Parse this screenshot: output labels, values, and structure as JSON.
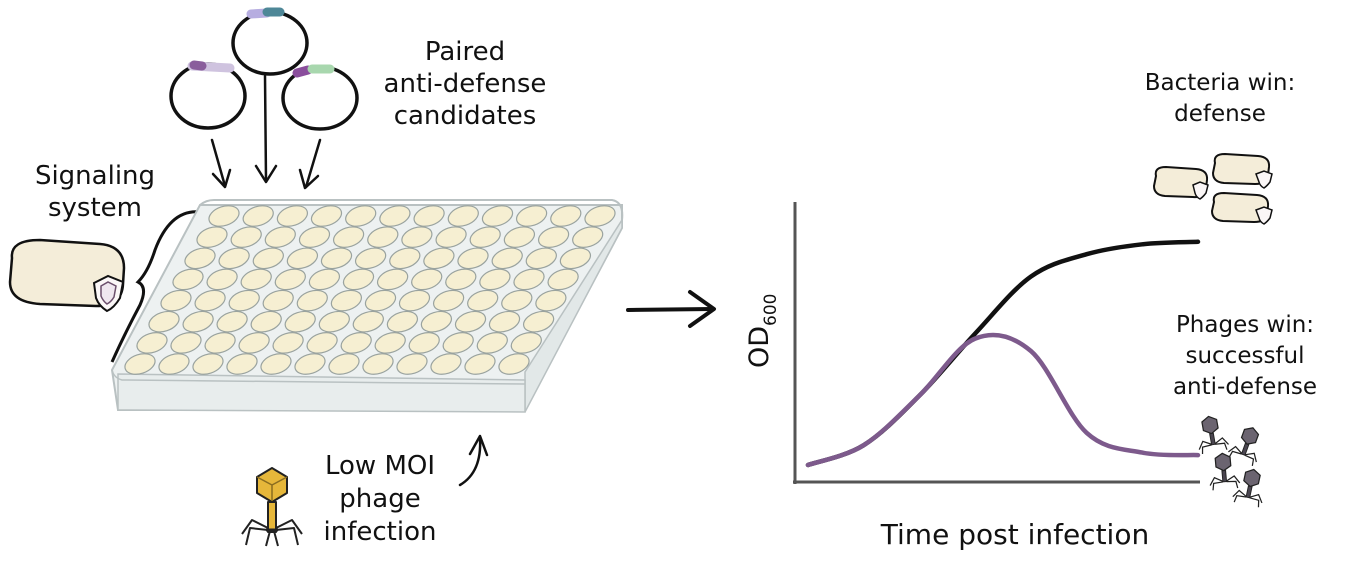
{
  "labels": {
    "paired_line1": "Paired",
    "paired_line2": "anti-defense",
    "paired_line3": "candidates",
    "signaling_line1": "Signaling",
    "signaling_line2": "system",
    "moi_line1": "Low MOI",
    "moi_line2": "phage",
    "moi_line3": "infection",
    "bacteria_win_line1": "Bacteria win:",
    "bacteria_win_line2": "defense",
    "phages_win_line1": "Phages win:",
    "phages_win_line2": "successful",
    "phages_win_line3": "anti-defense"
  },
  "chart_data": {
    "type": "line",
    "xlabel": "Time post infection",
    "ylabel": "OD",
    "ylabel_subscript": "600",
    "series": [
      {
        "color": "#111111",
        "values": [
          0.02,
          0.1,
          0.3,
          0.55,
          0.78,
          0.87,
          0.91,
          0.92
        ]
      },
      {
        "color": "#7d5a8c",
        "values": [
          0.02,
          0.1,
          0.3,
          0.53,
          0.48,
          0.15,
          0.07,
          0.06
        ]
      }
    ]
  },
  "colors": {
    "well_fill": "#f6efd2",
    "plate_fill": "#edf1f1",
    "cell_fill": "#f4edd9",
    "phage_yellow": "#e6b73a",
    "phage_dark": "#6b6470",
    "purple": "#7d5a8c"
  },
  "icons": [
    "plasmid-icon",
    "shield-icon",
    "phage-icon",
    "arrow-icon"
  ]
}
